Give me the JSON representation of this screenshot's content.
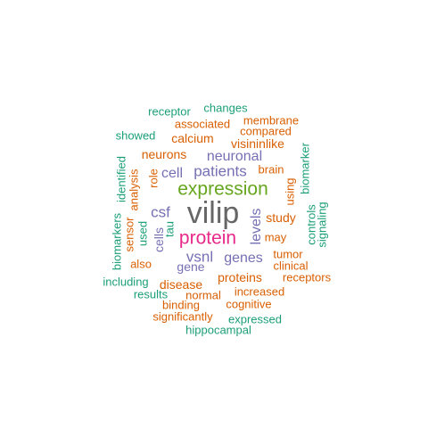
{
  "colors": {
    "gray": "#666666",
    "green": "#66a61e",
    "pink": "#e7298a",
    "purple": "#7570b3",
    "orange": "#d95f02",
    "teal": "#1b9e77"
  },
  "words": [
    {
      "text": "vilip",
      "color": "gray"
    },
    {
      "text": "expression",
      "color": "green"
    },
    {
      "text": "protein",
      "color": "pink"
    },
    {
      "text": "patients",
      "color": "purple"
    },
    {
      "text": "neuronal",
      "color": "purple"
    },
    {
      "text": "csf",
      "color": "purple"
    },
    {
      "text": "vsnl",
      "color": "purple"
    },
    {
      "text": "genes",
      "color": "purple"
    },
    {
      "text": "cell",
      "color": "purple"
    },
    {
      "text": "levels",
      "color": "purple"
    },
    {
      "text": "cells",
      "color": "purple"
    },
    {
      "text": "gene",
      "color": "purple"
    },
    {
      "text": "calcium",
      "color": "orange"
    },
    {
      "text": "visininlike",
      "color": "orange"
    },
    {
      "text": "neurons",
      "color": "orange"
    },
    {
      "text": "study",
      "color": "orange"
    },
    {
      "text": "disease",
      "color": "orange"
    },
    {
      "text": "proteins",
      "color": "orange"
    },
    {
      "text": "associated",
      "color": "orange"
    },
    {
      "text": "membrane",
      "color": "orange"
    },
    {
      "text": "compared",
      "color": "orange"
    },
    {
      "text": "brain",
      "color": "orange"
    },
    {
      "text": "role",
      "color": "orange"
    },
    {
      "text": "analysis",
      "color": "orange"
    },
    {
      "text": "sensor",
      "color": "orange"
    },
    {
      "text": "may",
      "color": "orange"
    },
    {
      "text": "tumor",
      "color": "orange"
    },
    {
      "text": "clinical",
      "color": "orange"
    },
    {
      "text": "receptors",
      "color": "orange"
    },
    {
      "text": "also",
      "color": "orange"
    },
    {
      "text": "using",
      "color": "orange"
    },
    {
      "text": "increased",
      "color": "orange"
    },
    {
      "text": "normal",
      "color": "orange"
    },
    {
      "text": "cognitive",
      "color": "orange"
    },
    {
      "text": "binding",
      "color": "orange"
    },
    {
      "text": "significantly",
      "color": "orange"
    },
    {
      "text": "receptor",
      "color": "teal"
    },
    {
      "text": "changes",
      "color": "teal"
    },
    {
      "text": "showed",
      "color": "teal"
    },
    {
      "text": "biomarker",
      "color": "teal"
    },
    {
      "text": "identified",
      "color": "teal"
    },
    {
      "text": "tau",
      "color": "teal"
    },
    {
      "text": "used",
      "color": "teal"
    },
    {
      "text": "biomarkers",
      "color": "teal"
    },
    {
      "text": "controls",
      "color": "teal"
    },
    {
      "text": "signaling",
      "color": "teal"
    },
    {
      "text": "including",
      "color": "teal"
    },
    {
      "text": "results",
      "color": "teal"
    },
    {
      "text": "expressed",
      "color": "teal"
    },
    {
      "text": "hippocampal",
      "color": "teal"
    }
  ]
}
